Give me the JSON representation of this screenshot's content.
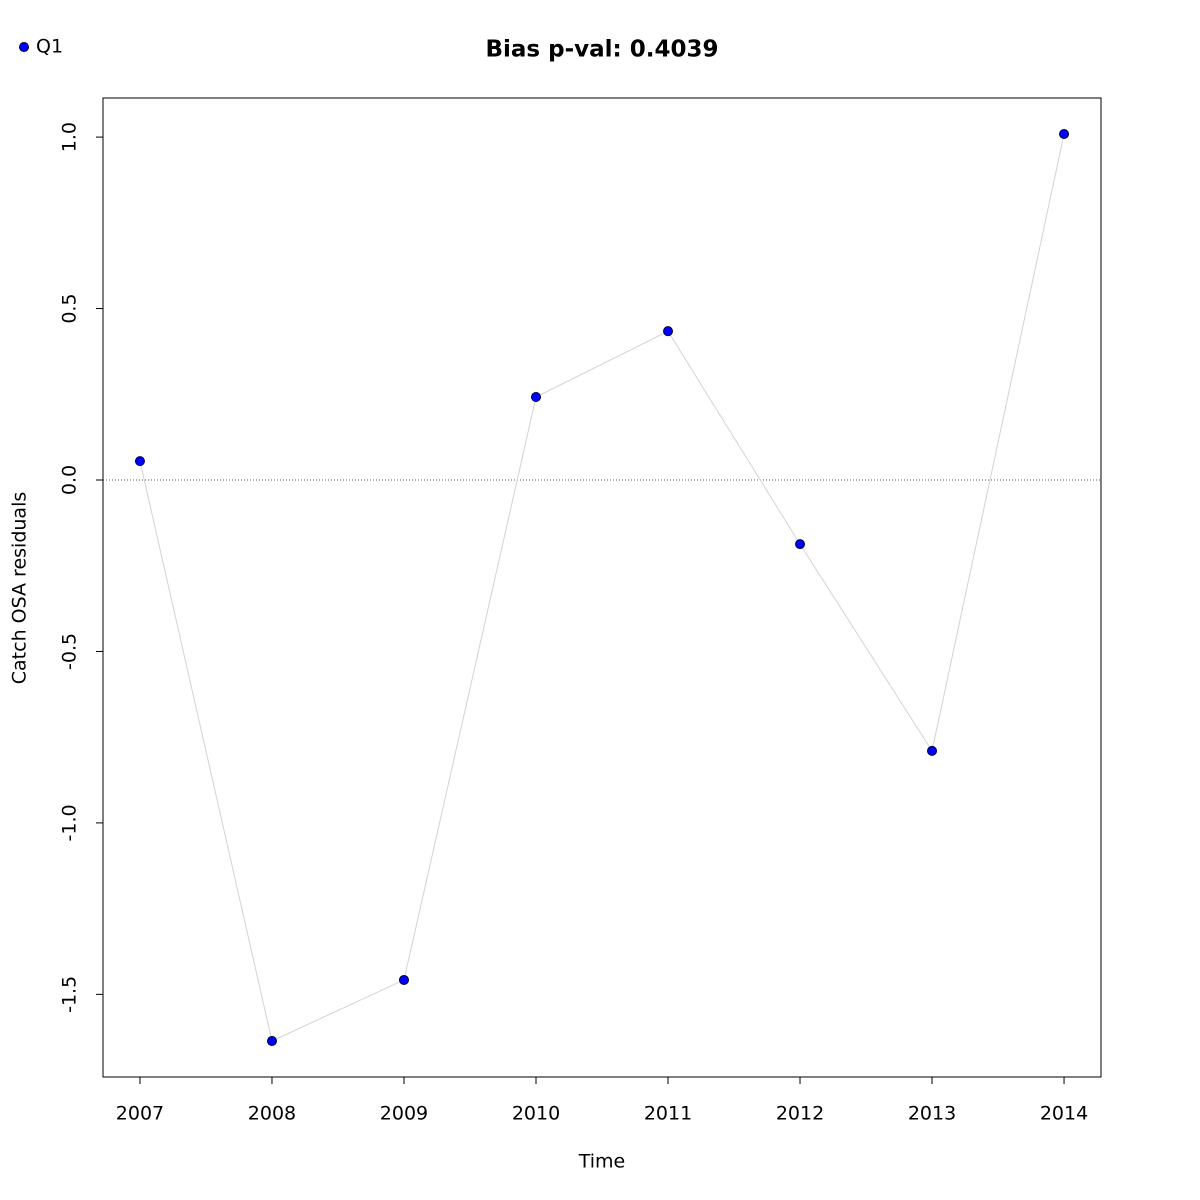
{
  "chart_data": {
    "type": "line",
    "title": "Bias p-val: 0.4039",
    "title_color": "#228b22",
    "x_label": "Time",
    "y_label": "Catch OSA residuals",
    "x": [
      2007,
      2008,
      2009,
      2010,
      2011,
      2012,
      2013,
      2014
    ],
    "series": [
      {
        "name": "Q1",
        "color": "#0000ff",
        "line_color": "#d3d3d3",
        "values": [
          0.055,
          -1.636,
          -1.458,
          0.242,
          0.434,
          -0.187,
          -0.79,
          1.009
        ]
      }
    ],
    "xlim": [
      2006.72,
      2014.28
    ],
    "xticks": [
      2007,
      2008,
      2009,
      2010,
      2011,
      2012,
      2013,
      2014
    ],
    "ylim": [
      -1.741,
      1.114
    ],
    "yticks": [
      {
        "value": -1.5,
        "label": "-1.5"
      },
      {
        "value": -1,
        "label": "-1.0"
      },
      {
        "value": -0.5,
        "label": "-0.5"
      },
      {
        "value": 0,
        "label": "0.0"
      },
      {
        "value": 0.5,
        "label": "0.5"
      },
      {
        "value": 1,
        "label": "1.0"
      }
    ],
    "reference_line": 0,
    "legend_position": "top-left"
  }
}
